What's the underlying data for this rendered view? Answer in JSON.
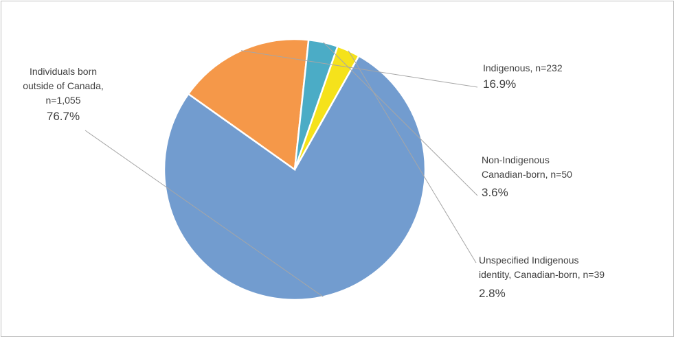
{
  "chart_data": {
    "type": "pie",
    "slices": [
      {
        "label_lines": [
          "Individuals born",
          "outside of Canada,",
          "n=1,055"
        ],
        "n": 1055,
        "percent": 76.7,
        "percent_label": "76.7%",
        "color": "#729ccf"
      },
      {
        "label_lines": [
          "Indigenous, n=232"
        ],
        "n": 232,
        "percent": 16.9,
        "percent_label": "16.9%",
        "color": "#f59849"
      },
      {
        "label_lines": [
          "Non-Indigenous",
          "Canadian-born, n=50"
        ],
        "n": 50,
        "percent": 3.6,
        "percent_label": "3.6%",
        "color": "#4bacc6"
      },
      {
        "label_lines": [
          "Unspecified Indigenous",
          "identity, Canadian-born, n=39"
        ],
        "n": 39,
        "percent": 2.8,
        "percent_label": "2.8%",
        "color": "#f5e21b"
      }
    ],
    "legend": "none"
  }
}
